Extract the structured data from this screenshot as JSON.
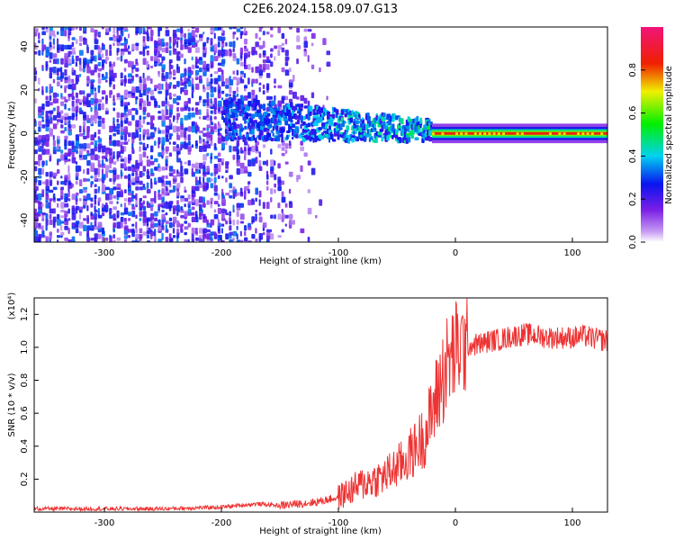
{
  "title": "C2E6.2024.158.09.07.G13",
  "chart_data": [
    {
      "type": "heatmap",
      "xlabel": "Height of straight line (km)",
      "ylabel": "Frequency (Hz)",
      "xlim": [
        -360,
        130
      ],
      "ylim": [
        -50,
        49
      ],
      "xticks": [
        -300,
        -200,
        -100,
        0,
        100
      ],
      "yticks": [
        -40,
        -20,
        0,
        20,
        40
      ],
      "colorbar": {
        "label": "Normalized spectral amplitude",
        "range": [
          0,
          1
        ],
        "ticks": [
          0.0,
          0.2,
          0.4,
          0.6,
          0.8
        ],
        "colormap": "rainbow (white-violet-blue-cyan-green-yellow-red-pink)"
      },
      "features": [
        {
          "name": "noise",
          "x_range": [
            -360,
            -110
          ],
          "freq_range": [
            -50,
            49
          ],
          "amplitude": [
            0.05,
            0.35
          ]
        },
        {
          "name": "scattered band",
          "x_range": [
            -200,
            -20
          ],
          "freq_center": 3,
          "freq_halfwidth": 10,
          "amplitude": [
            0.2,
            0.55
          ]
        },
        {
          "name": "narrow line",
          "x_range": [
            -20,
            130
          ],
          "freq_center": 0,
          "freq_halfwidth": 2,
          "amplitude": [
            0.85,
            0.95
          ]
        }
      ]
    },
    {
      "type": "line",
      "xlabel": "Height of straight line (km)",
      "ylabel": "SNR (10 * v/v)",
      "y_multiplier": "(x10⁴)",
      "xlim": [
        -360,
        130
      ],
      "ylim": [
        0,
        1.3
      ],
      "xticks": [
        -300,
        -200,
        -100,
        0,
        100
      ],
      "yticks": [
        0.2,
        0.4,
        0.6,
        0.8,
        1.0,
        1.2
      ],
      "series": [
        {
          "color": "#ee3333",
          "x": [
            -360,
            -300,
            -250,
            -200,
            -170,
            -150,
            -120,
            -100,
            -80,
            -60,
            -45,
            -35,
            -25,
            -18,
            -12,
            -8,
            -3,
            0,
            5,
            10,
            20,
            30,
            40,
            50,
            60,
            70,
            80,
            90,
            100,
            110,
            120,
            130
          ],
          "y": [
            0.02,
            0.02,
            0.02,
            0.03,
            0.05,
            0.04,
            0.06,
            0.09,
            0.17,
            0.22,
            0.3,
            0.38,
            0.48,
            0.65,
            0.8,
            0.88,
            0.94,
            0.98,
            1.0,
            1.01,
            1.02,
            1.04,
            1.05,
            1.07,
            1.08,
            1.07,
            1.06,
            1.06,
            1.06,
            1.07,
            1.05,
            1.04
          ]
        }
      ]
    }
  ]
}
